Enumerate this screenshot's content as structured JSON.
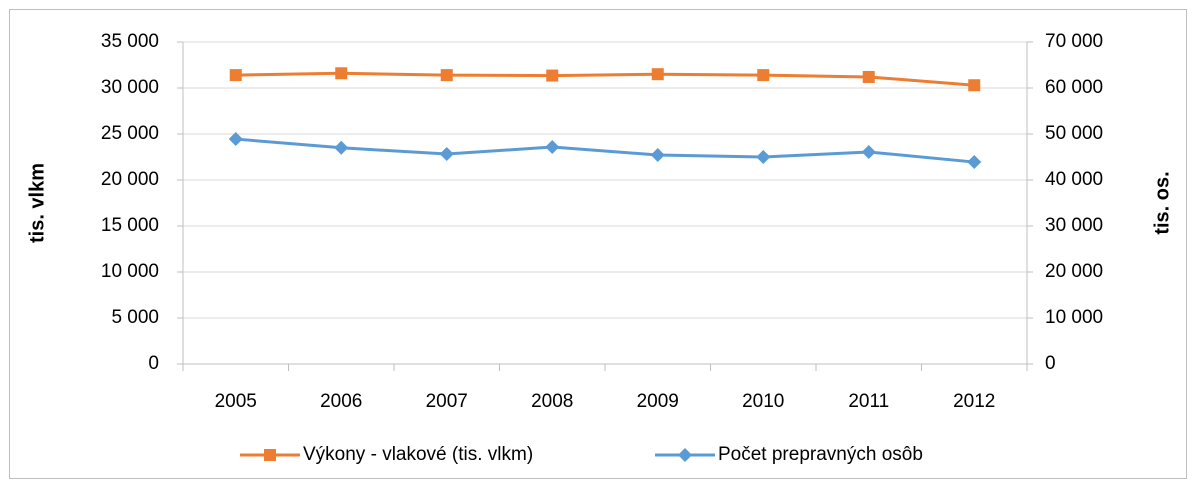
{
  "chart_data": {
    "type": "line",
    "categories": [
      "2005",
      "2006",
      "2007",
      "2008",
      "2009",
      "2010",
      "2011",
      "2012"
    ],
    "series": [
      {
        "name": "Výkony - vlakové (tis. vlkm)",
        "color": "#ed7d31",
        "marker": "square",
        "axis": "y",
        "values": [
          31400,
          31600,
          31400,
          31350,
          31500,
          31400,
          31200,
          30300
        ]
      },
      {
        "name": "Počet prepravných osôb",
        "color": "#5b9bd5",
        "marker": "diamond",
        "axis": "y2",
        "values": [
          48900,
          47000,
          45650,
          47170,
          45430,
          45000,
          46090,
          43900
        ]
      }
    ],
    "ylabel": "tis. vlkm",
    "y2label": "tis. os.",
    "ylim": [
      0,
      35000
    ],
    "yticks": [
      0,
      {
        "value": 5000,
        "label": "5 000"
      },
      {
        "value": 10000,
        "label": "10 000"
      },
      {
        "value": 15000,
        "label": "15 000"
      },
      {
        "value": 20000,
        "label": "20 000"
      },
      {
        "value": 25000,
        "label": "25 000"
      },
      {
        "value": 30000,
        "label": "30 000"
      },
      {
        "value": 35000,
        "label": "35 000"
      }
    ],
    "y2lim": [
      0,
      70000
    ],
    "y2ticks": [
      0,
      {
        "value": 10000,
        "label": "10 000"
      },
      {
        "value": 20000,
        "label": "20 000"
      },
      {
        "value": 30000,
        "label": "30 000"
      },
      {
        "value": 40000,
        "label": "40 000"
      },
      {
        "value": 50000,
        "label": "50 000"
      },
      {
        "value": 60000,
        "label": "60 000"
      },
      {
        "value": 70000,
        "label": "70 000"
      }
    ],
    "grid": true,
    "legend": "bottom"
  }
}
